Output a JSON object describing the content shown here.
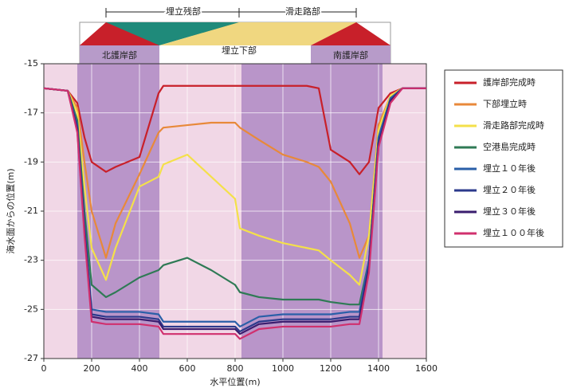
{
  "chart_data": {
    "type": "line",
    "annotations": [
      "埋立残部",
      "滑走路部",
      "北護岸部",
      "埋立下部",
      "南護岸部"
    ],
    "xlabel": "水平位置(m)",
    "ylabel": "海水面からの位置(m)",
    "x": [
      0,
      100,
      140,
      170,
      200,
      260,
      300,
      400,
      480,
      500,
      600,
      700,
      800,
      820,
      900,
      1000,
      1100,
      1150,
      1200,
      1280,
      1320,
      1360,
      1400,
      1450,
      1500,
      1600
    ],
    "series": [
      {
        "name": "護岸部完成時",
        "color": "#c8202a",
        "values": [
          -16,
          -16.1,
          -16.6,
          -18,
          -19,
          -19.4,
          -19.2,
          -18.8,
          -16.2,
          -15.9,
          -15.9,
          -15.9,
          -15.9,
          -15.9,
          -15.9,
          -15.9,
          -15.9,
          -16,
          -18.5,
          -19,
          -19.5,
          -19,
          -16.8,
          -16.2,
          -16,
          -16
        ]
      },
      {
        "name": "下部埋立時",
        "color": "#e8893a",
        "values": [
          -16,
          -16.1,
          -16.8,
          -19,
          -21,
          -22.9,
          -21.5,
          -19.5,
          -17.8,
          -17.6,
          -17.5,
          -17.4,
          -17.4,
          -17.6,
          -18.1,
          -18.7,
          -19,
          -19.2,
          -19.8,
          -21.5,
          -22.9,
          -22,
          -17.5,
          -16.3,
          -16,
          -16
        ]
      },
      {
        "name": "滑走路部完成時",
        "color": "#f4e04a",
        "values": [
          -16,
          -16.1,
          -17,
          -20,
          -22.5,
          -23.8,
          -22.5,
          -20,
          -19.6,
          -19.1,
          -18.7,
          -19.6,
          -20.5,
          -21.7,
          -22,
          -22.3,
          -22.5,
          -22.6,
          -23,
          -23.6,
          -24,
          -22,
          -17.7,
          -16.3,
          -16,
          -16
        ]
      },
      {
        "name": "空港島完成時",
        "color": "#2f7a55",
        "values": [
          -16,
          -16.1,
          -17.3,
          -21,
          -24,
          -24.5,
          -24.3,
          -23.7,
          -23.4,
          -23.2,
          -22.9,
          -23.4,
          -24,
          -24.3,
          -24.5,
          -24.6,
          -24.6,
          -24.6,
          -24.7,
          -24.8,
          -24.8,
          -23,
          -18,
          -16.4,
          -16,
          -16
        ]
      },
      {
        "name": "埋立１０年後",
        "color": "#2a5fa8",
        "values": [
          -16,
          -16.1,
          -17.5,
          -21.5,
          -25,
          -25.1,
          -25.1,
          -25.1,
          -25.2,
          -25.5,
          -25.5,
          -25.5,
          -25.5,
          -25.7,
          -25.3,
          -25.2,
          -25.2,
          -25.2,
          -25.2,
          -25.1,
          -25.1,
          -23,
          -18,
          -16.4,
          -16,
          -16
        ]
      },
      {
        "name": "埋立２０年後",
        "color": "#2b3a8c",
        "values": [
          -16,
          -16.1,
          -17.6,
          -21.7,
          -25.2,
          -25.3,
          -25.3,
          -25.3,
          -25.4,
          -25.7,
          -25.7,
          -25.7,
          -25.7,
          -25.9,
          -25.5,
          -25.4,
          -25.4,
          -25.4,
          -25.4,
          -25.3,
          -25.3,
          -23.2,
          -18.2,
          -16.5,
          -16,
          -16
        ]
      },
      {
        "name": "埋立３０年後",
        "color": "#3a1d6e",
        "values": [
          -16,
          -16.1,
          -17.7,
          -21.8,
          -25.3,
          -25.4,
          -25.4,
          -25.4,
          -25.5,
          -25.8,
          -25.8,
          -25.8,
          -25.8,
          -26,
          -25.6,
          -25.5,
          -25.5,
          -25.5,
          -25.5,
          -25.4,
          -25.4,
          -23.3,
          -18.3,
          -16.5,
          -16,
          -16
        ]
      },
      {
        "name": "埋立１００年後",
        "color": "#d0306e",
        "values": [
          -16,
          -16.1,
          -17.8,
          -22,
          -25.5,
          -25.6,
          -25.6,
          -25.6,
          -25.7,
          -26,
          -26,
          -26,
          -26,
          -26.2,
          -25.8,
          -25.7,
          -25.7,
          -25.7,
          -25.7,
          -25.6,
          -25.6,
          -23.5,
          -18.4,
          -16.6,
          -16,
          -16
        ]
      }
    ],
    "xlim": [
      0,
      1600
    ],
    "xticks": [
      0,
      200,
      400,
      600,
      800,
      1000,
      1200,
      1400,
      1600
    ],
    "ylim": [
      -27,
      -15
    ],
    "yticks": [
      -15,
      -17,
      -19,
      -21,
      -23,
      -25,
      -27
    ],
    "grid": true
  }
}
